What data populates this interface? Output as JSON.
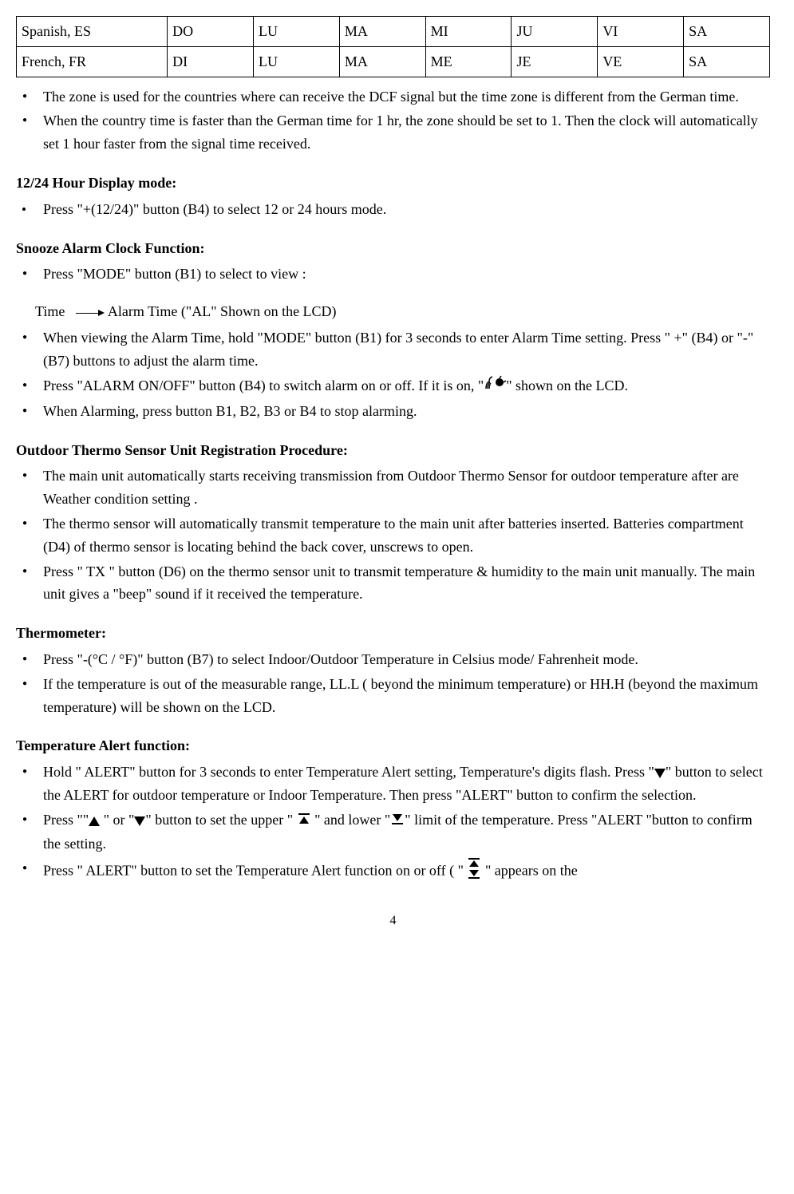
{
  "table": {
    "rows": [
      {
        "lang": "Spanish, ES",
        "days": [
          "DO",
          "LU",
          "MA",
          "MI",
          "JU",
          "VI",
          "SA"
        ]
      },
      {
        "lang": "French, FR",
        "days": [
          "DI",
          "LU",
          "MA",
          "ME",
          "JE",
          "VE",
          "SA"
        ]
      }
    ]
  },
  "intro_bullets": [
    "The zone is used for the countries where can receive the DCF signal but the time zone is different from the German time.",
    "When the country time is faster than the German time for 1 hr, the zone should be set to 1. Then the clock will automatically set 1 hour faster from the signal time received."
  ],
  "section_1224": {
    "heading": "12/24 Hour Display mode:",
    "bullet": "Press \"+(12/24)\" button (B4) to select 12 or 24 hours mode."
  },
  "section_snooze": {
    "heading": "Snooze Alarm Clock Function:",
    "b1": "Press \"MODE\" button (B1) to select to view :",
    "sub_time": "Time",
    "sub_alarm": "Alarm Time (\"AL\" Shown on the LCD)",
    "b2": "When viewing the Alarm Time, hold \"MODE\" button (B1) for 3 seconds to enter Alarm Time setting. Press \" +\" (B4) or \"-\" (B7) buttons to adjust the alarm time.",
    "b3_pre": "Press \"ALARM ON/OFF\" button (B4) to switch alarm on or off. If it is on, \"",
    "b3_post": "\" shown on the LCD.",
    "b4": "When Alarming, press button B1, B2, B3 or B4 to stop alarming."
  },
  "section_outdoor": {
    "heading": "Outdoor Thermo Sensor Unit Registration Procedure:",
    "b1": "The main unit automatically starts receiving transmission from Outdoor Thermo Sensor for outdoor temperature after are Weather condition setting .",
    "b2": "The thermo sensor will automatically transmit temperature to the main unit after batteries inserted. Batteries compartment (D4) of thermo sensor is locating behind the back cover, unscrews to open.",
    "b3": "Press \" TX \" button (D6) on the thermo sensor unit to transmit temperature & humidity to the main unit manually. The main unit gives a \"beep\" sound if it received the temperature."
  },
  "section_thermo": {
    "heading": "Thermometer:",
    "b1": "Press \"-(°C / °F)\" button (B7) to select Indoor/Outdoor Temperature in Celsius mode/ Fahrenheit mode.",
    "b2": "If the temperature is out of the measurable range, LL.L ( beyond the minimum temperature) or HH.H (beyond the maximum temperature) will be shown on the LCD."
  },
  "section_alert": {
    "heading": "Temperature Alert function:",
    "b1_pre": "Hold \" ALERT\" button for 3 seconds to enter Temperature Alert setting, Temperature's digits flash. Press \"",
    "b1_post": "\" button to select the ALERT for outdoor temperature or Indoor Temperature. Then press \"ALERT\" button to confirm the selection.",
    "b2_p1": "Press \"\"",
    "b2_p2": " \" or \"",
    "b2_p3": "\" button to set the upper \" ",
    "b2_p4": " \" and lower \"",
    "b2_p5": "\" limit of the temperature. Press \"ALERT \"button to confirm the setting.",
    "b3_pre": "Press \" ALERT\" button to set the Temperature Alert function on or off ( \" ",
    "b3_post": " \" appears on the"
  },
  "page_number": "4"
}
